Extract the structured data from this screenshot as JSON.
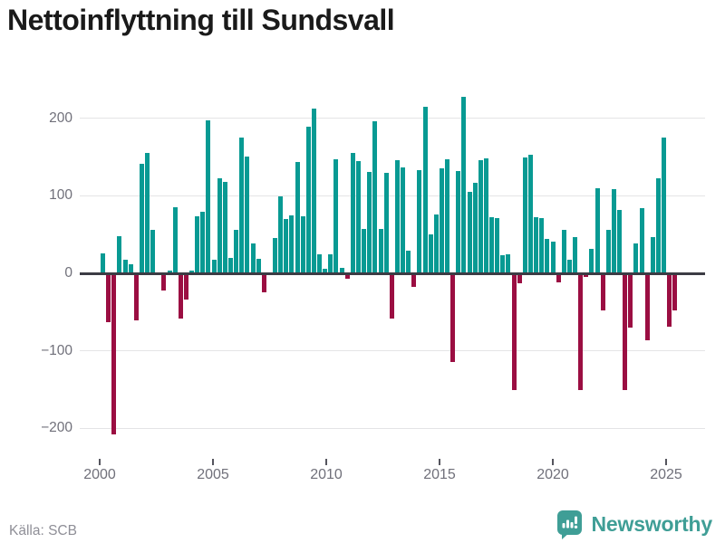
{
  "title": "Nettoinflyttning till Sundsvall",
  "source": "Källa: SCB",
  "branding": {
    "name": "Newsworthy",
    "color": "#3f9e96"
  },
  "colors": {
    "positive_bar": "#089a93",
    "negative_bar": "#9b0e42",
    "gridline": "#e4e4e6",
    "zero_line": "#3c3c44",
    "axis_text": "#70707a",
    "title_text": "#1a1a1a",
    "source_text": "#8f8f97",
    "background": "#ffffff"
  },
  "chart_data": {
    "type": "bar",
    "title": "Nettoinflyttning till Sundsvall",
    "frequency": "quarterly",
    "start_period": "2000Q1",
    "end_period": "2025Q4",
    "y_ticks": [
      200,
      100,
      0,
      -100,
      -200
    ],
    "y_tick_labels": [
      "200",
      "100",
      "0",
      "−100",
      "−200"
    ],
    "x_tick_years": [
      2000,
      2005,
      2010,
      2015,
      2020,
      2025
    ],
    "ylim": [
      -240,
      236
    ],
    "grid": "horizontal",
    "legend": "none",
    "categories": [
      "2000Q1",
      "2000Q2",
      "2000Q3",
      "2000Q4",
      "2001Q1",
      "2001Q2",
      "2001Q3",
      "2001Q4",
      "2002Q1",
      "2002Q2",
      "2002Q3",
      "2002Q4",
      "2003Q1",
      "2003Q2",
      "2003Q3",
      "2003Q4",
      "2004Q1",
      "2004Q2",
      "2004Q3",
      "2004Q4",
      "2005Q1",
      "2005Q2",
      "2005Q3",
      "2005Q4",
      "2006Q1",
      "2006Q2",
      "2006Q3",
      "2006Q4",
      "2007Q1",
      "2007Q2",
      "2007Q3",
      "2007Q4",
      "2008Q1",
      "2008Q2",
      "2008Q3",
      "2008Q4",
      "2009Q1",
      "2009Q2",
      "2009Q3",
      "2009Q4",
      "2010Q1",
      "2010Q2",
      "2010Q3",
      "2010Q4",
      "2011Q1",
      "2011Q2",
      "2011Q3",
      "2011Q4",
      "2012Q1",
      "2012Q2",
      "2012Q3",
      "2012Q4",
      "2013Q1",
      "2013Q2",
      "2013Q3",
      "2013Q4",
      "2014Q1",
      "2014Q2",
      "2014Q3",
      "2014Q4",
      "2015Q1",
      "2015Q2",
      "2015Q3",
      "2015Q4",
      "2016Q1",
      "2016Q2",
      "2016Q3",
      "2016Q4",
      "2017Q1",
      "2017Q2",
      "2017Q3",
      "2017Q4",
      "2018Q1",
      "2018Q2",
      "2018Q3",
      "2018Q4",
      "2019Q1",
      "2019Q2",
      "2019Q3",
      "2019Q4",
      "2020Q1",
      "2020Q2",
      "2020Q3",
      "2020Q4",
      "2021Q1",
      "2021Q2",
      "2021Q3",
      "2021Q4",
      "2022Q1",
      "2022Q2",
      "2022Q3",
      "2022Q4",
      "2023Q1",
      "2023Q2",
      "2023Q3",
      "2023Q4",
      "2024Q1",
      "2024Q2",
      "2024Q3",
      "2024Q4",
      "2025Q1",
      "2025Q2",
      "2025Q3",
      "2025Q4"
    ],
    "values": [
      26,
      -63,
      -208,
      48,
      17,
      12,
      -61,
      141,
      155,
      56,
      0,
      -22,
      4,
      85,
      -58,
      -34,
      3,
      74,
      79,
      197,
      17,
      123,
      118,
      20,
      56,
      175,
      151,
      38,
      19,
      -24,
      0,
      46,
      99,
      70,
      75,
      144,
      74,
      189,
      213,
      25,
      6,
      24,
      147,
      7,
      -7,
      155,
      145,
      57,
      131,
      196,
      57,
      130,
      -58,
      146,
      137,
      29,
      -17,
      133,
      215,
      50,
      76,
      136,
      147,
      -114,
      132,
      228,
      105,
      117,
      146,
      148,
      73,
      71,
      23,
      25,
      -151,
      -13,
      149,
      153,
      73,
      71,
      44,
      41,
      -12,
      56,
      18,
      47,
      -151,
      -5,
      32,
      110,
      -48,
      56,
      109,
      82,
      -151,
      -70,
      39,
      84,
      -86,
      47,
      123,
      175,
      -69,
      -48
    ]
  }
}
